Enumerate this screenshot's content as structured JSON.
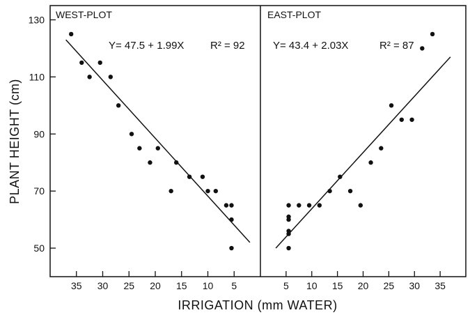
{
  "chart_data": {
    "type": "scatter",
    "shared_ylabel": "PLANT HEIGHT (cm)",
    "shared_xlabel": "IRRIGATION (mm WATER)",
    "ylim": [
      40,
      135
    ],
    "yticks": [
      50,
      70,
      90,
      110,
      130
    ],
    "panels": [
      {
        "title": "WEST-PLOT",
        "equation": "Y= 47.5 + 1.99X",
        "r2": "R² = 92",
        "x_reversed": true,
        "xlim": [
          40,
          0
        ],
        "xticks": [
          35,
          30,
          25,
          20,
          15,
          10,
          5
        ],
        "x": [
          36,
          34,
          32.5,
          30.5,
          28.5,
          27,
          24.5,
          23,
          21,
          19.5,
          17,
          16,
          13.5,
          11,
          10,
          8.5,
          6.5,
          5.5,
          5.5,
          5.5
        ],
        "y": [
          125,
          115,
          110,
          115,
          110,
          100,
          90,
          85,
          80,
          85,
          70,
          80,
          75,
          75,
          70,
          70,
          65,
          65,
          60,
          50
        ],
        "fit_line": {
          "x": [
            37,
            2
          ],
          "y": [
            123,
            52
          ]
        }
      },
      {
        "title": "EAST-PLOT",
        "equation": "Y= 43.4 + 2.03X",
        "r2": "R² = 87",
        "x_reversed": false,
        "xlim": [
          0,
          40
        ],
        "xticks": [
          5,
          10,
          15,
          20,
          25,
          30,
          35
        ],
        "x": [
          5.5,
          5.5,
          5.5,
          5.5,
          5.5,
          5.5,
          7.5,
          9.5,
          11.5,
          13.5,
          15.5,
          17.5,
          19.5,
          21.5,
          23.5,
          25.5,
          27.5,
          29.5,
          31.5,
          33.5
        ],
        "y": [
          65,
          61,
          60,
          56,
          55,
          50,
          65,
          65,
          65,
          70,
          75,
          70,
          65,
          80,
          85,
          100,
          95,
          95,
          120,
          125
        ],
        "fit_line": {
          "x": [
            3,
            37
          ],
          "y": [
            50,
            117
          ]
        }
      }
    ]
  }
}
